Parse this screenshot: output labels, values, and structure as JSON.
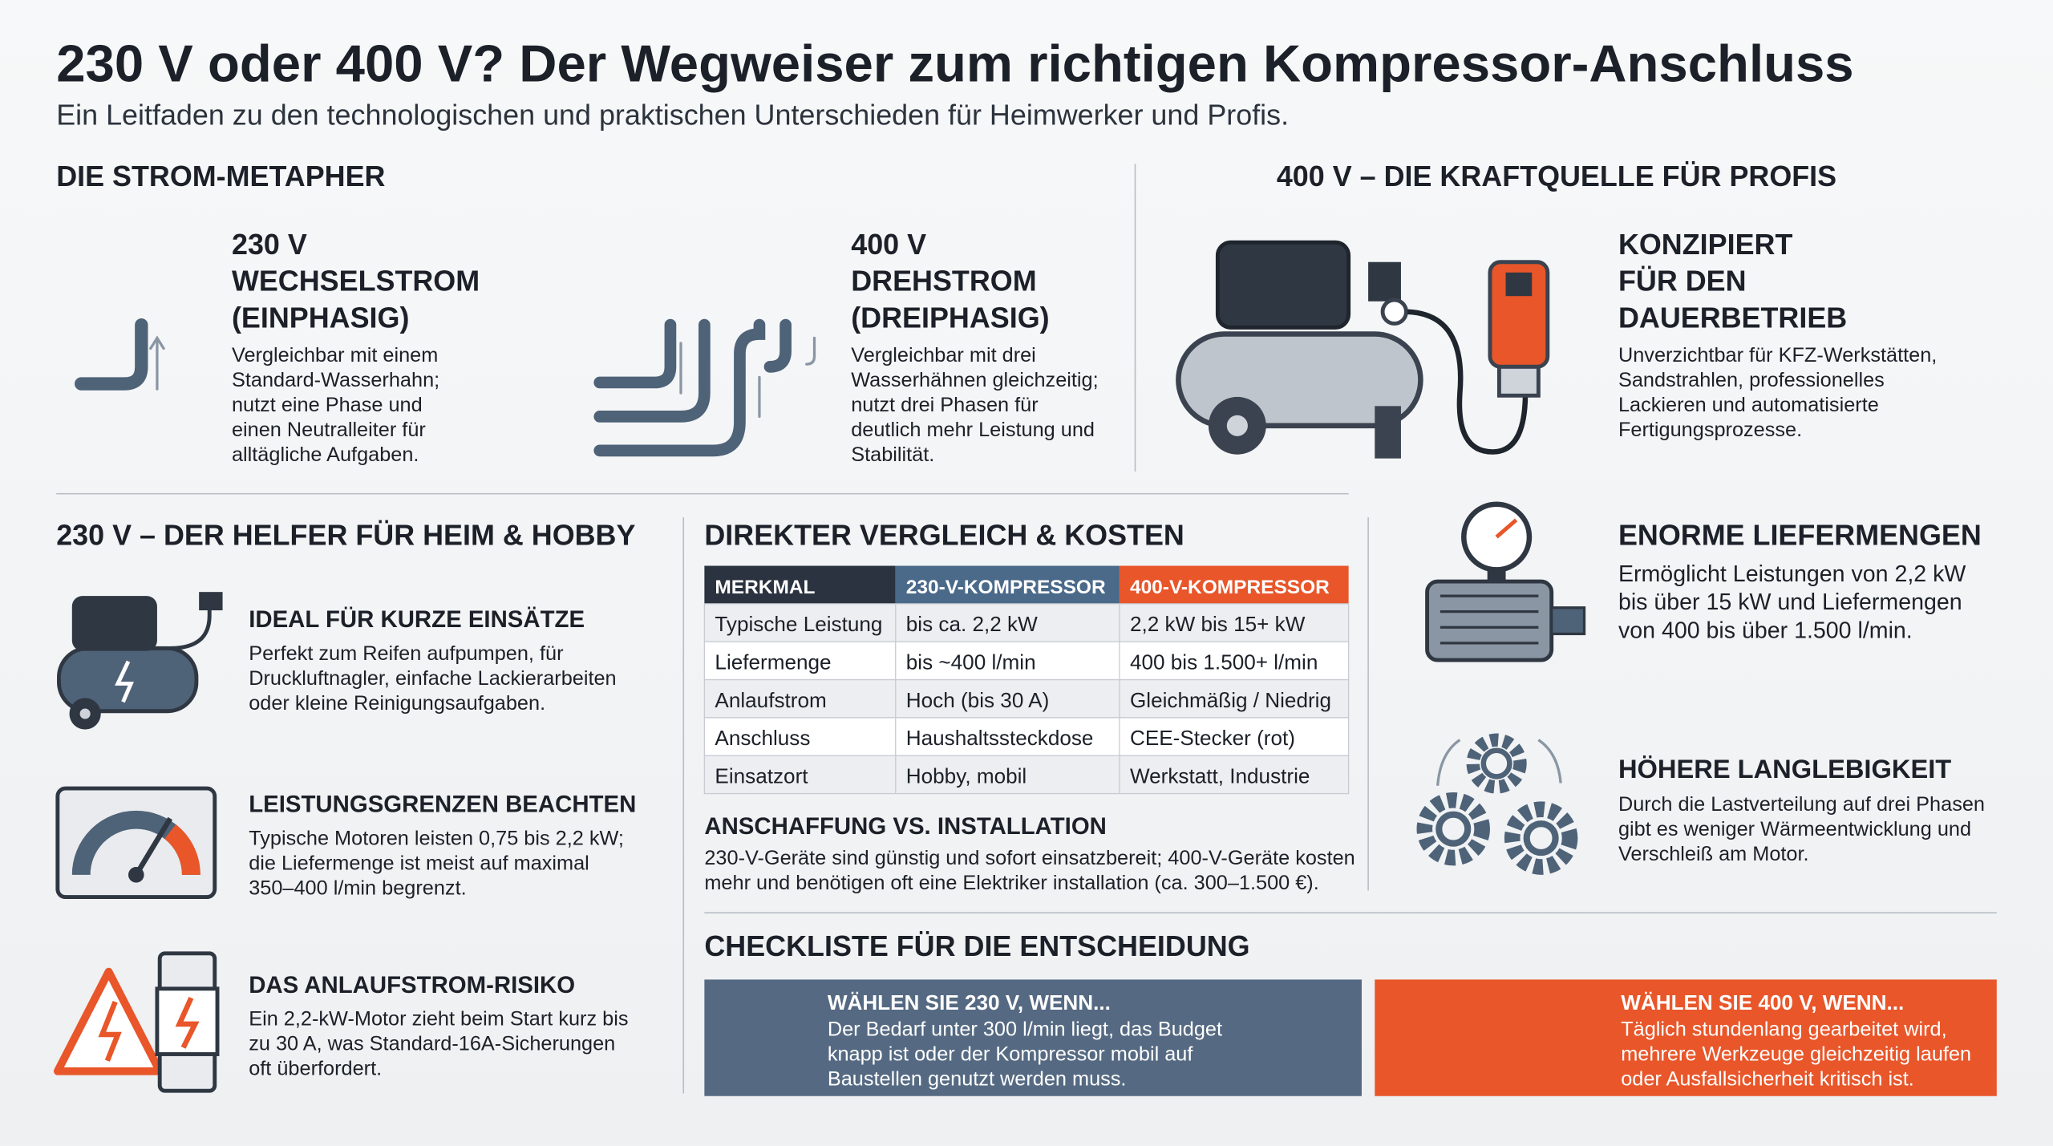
{
  "header": {
    "title": "230 V oder 400 V? Der Wegweiser zum richtigen Kompressor-Anschluss",
    "subtitle": "Ein Leitfaden zu den technologischen und praktischen Unterschieden für Heimwerker und Profis."
  },
  "metaphor": {
    "heading": "DIE STROM-METAPHER",
    "items": [
      {
        "title": [
          "230 V",
          "WECHSELSTROM",
          "(EINPHASIG)"
        ],
        "body": [
          "Vergleichbar mit einem",
          "Standard-Wasserhahn;",
          "nutzt eine Phase und",
          "einen Neutralleiter für",
          "alltägliche Aufgaben."
        ]
      },
      {
        "title": [
          "400 V",
          "DREHSTROM",
          "(DREIPHASIG)"
        ],
        "body": [
          "Vergleichbar mit drei",
          "Wasserhähnen gleichzeitig;",
          "nutzt drei Phasen für",
          "deutlich mehr Leistung und",
          "Stabilität."
        ]
      }
    ]
  },
  "pro": {
    "heading": "400 V – DIE KRAFTQUELLE FÜR PROFIS",
    "items": [
      {
        "title": [
          "KONZIPIERT",
          "FÜR DEN",
          "DAUERBETRIEB"
        ],
        "body": [
          "Unverzichtbar für KFZ-Werkstätten,",
          "Sandstrahlen, professionelles",
          "Lackieren und automatisierte",
          "Fertigungsprozesse."
        ]
      },
      {
        "title": [
          "ENORME LIEFERMENGEN"
        ],
        "body": [
          "Ermöglicht Leistungen von 2,2 kW",
          "bis über 15 kW und Liefermengen",
          "von 400 bis über 1.500 l/min."
        ]
      },
      {
        "title": [
          "HÖHERE LANGLEBIGKEIT"
        ],
        "body": [
          "Durch die Lastverteilung auf drei Phasen",
          "gibt es weniger Wärmeentwicklung und",
          "Verschleiß am Motor."
        ]
      }
    ]
  },
  "home": {
    "heading": "230 V – DER HELFER FÜR HEIM & HOBBY",
    "items": [
      {
        "title": [
          "IDEAL FÜR KURZE EINSÄTZE"
        ],
        "body": [
          "Perfekt zum Reifen aufpumpen, für",
          "Druckluftnagler, einfache Lackierarbeiten",
          "oder kleine Reinigungsaufgaben."
        ]
      },
      {
        "title": [
          "LEISTUNGSGRENZEN BEACHTEN"
        ],
        "body": [
          "Typische Motoren leisten 0,75 bis 2,2 kW;",
          "die Liefermenge ist meist auf maximal",
          "350–400 l/min begrenzt."
        ]
      },
      {
        "title": [
          "DAS ANLAUFSTROM-RISIKO"
        ],
        "body": [
          "Ein 2,2-kW-Motor zieht beim Start kurz bis",
          "zu 30 A, was Standard-16A-Sicherungen",
          "oft überfordert."
        ]
      }
    ]
  },
  "comparison": {
    "heading": "DIREKTER VERGLEICH & KOSTEN",
    "table": {
      "header": [
        "MERKMAL",
        "230-V-KOMPRESSOR",
        "400-V-KOMPRESSOR"
      ],
      "rows": [
        [
          "Typische Leistung",
          "bis ca. 2,2 kW",
          "2,2 kW bis 15+ kW"
        ],
        [
          "Liefermenge",
          "bis ~400 l/min",
          "400 bis 1.500+ l/min"
        ],
        [
          "Anlaufstrom",
          "Hoch (bis 30 A)",
          "Gleichmäßig / Niedrig"
        ],
        [
          "Anschluss",
          "Haushaltssteckdose",
          "CEE-Stecker (rot)"
        ],
        [
          "Einsatzort",
          "Hobby, mobil",
          "Werkstatt, Industrie"
        ]
      ]
    },
    "note": {
      "title": "ANSCHAFFUNG VS. INSTALLATION",
      "body": [
        "230-V-Geräte sind günstig und sofort einsatzbereit; 400-V-Geräte kosten",
        "mehr und benötigen oft eine Elektriker installation (ca. 300–1.500 €)."
      ]
    }
  },
  "checklist": {
    "heading": "CHECKLISTE FÜR DIE ENTSCHEIDUNG",
    "options": [
      {
        "title": "WÄHLEN SIE 230 V, WENN...",
        "body": [
          "Der Bedarf unter 300 l/min liegt, das Budget",
          "knapp ist oder der Kompressor mobil auf",
          "Baustellen genutzt werden muss."
        ]
      },
      {
        "title": "WÄHLEN SIE 400 V, WENN...",
        "body": [
          "Täglich stundenlang gearbeitet wird,",
          "mehrere Werkzeuge gleichzeitig laufen",
          "oder Ausfallsicherheit kritisch ist."
        ]
      }
    ]
  }
}
